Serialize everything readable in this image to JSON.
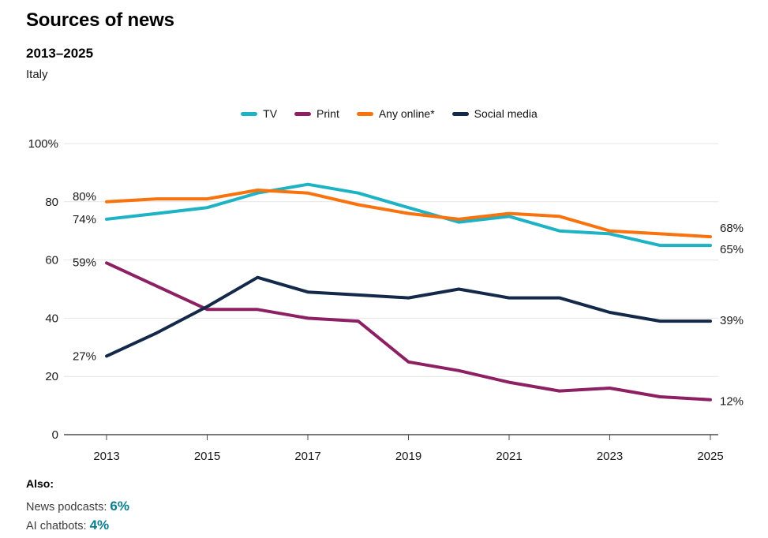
{
  "header": {
    "title": "Sources of news",
    "subtitle": "2013–2025",
    "region": "Italy"
  },
  "legend": [
    {
      "label": "TV",
      "color": "#1DB2C4"
    },
    {
      "label": "Print",
      "color": "#8D2063"
    },
    {
      "label": "Any online*",
      "color": "#F8720D"
    },
    {
      "label": "Social media",
      "color": "#14294A"
    }
  ],
  "chart_data": {
    "type": "line",
    "title": "Sources of news",
    "subtitle": "2013–2025",
    "region": "Italy",
    "x": [
      2013,
      2014,
      2015,
      2016,
      2017,
      2018,
      2019,
      2020,
      2021,
      2022,
      2023,
      2024,
      2025
    ],
    "xticks": [
      2013,
      2015,
      2017,
      2019,
      2021,
      2023,
      2025
    ],
    "ylim": [
      0,
      100
    ],
    "yticks": [
      {
        "value": 100,
        "label": "100%"
      },
      {
        "value": 80,
        "label": "80"
      },
      {
        "value": 60,
        "label": "60"
      },
      {
        "value": 40,
        "label": "40"
      },
      {
        "value": 20,
        "label": "20"
      },
      {
        "value": 0,
        "label": "0"
      }
    ],
    "grid": true,
    "legend_position": "top",
    "grid_color": "#e4e4e4",
    "axis_color": "#4d4d4d",
    "text_color": "#1a1a1a",
    "series": [
      {
        "name": "TV",
        "color": "#1DB2C4",
        "values": [
          74,
          76,
          78,
          83,
          86,
          83,
          78,
          73,
          75,
          70,
          69,
          65,
          65
        ],
        "start_label": "74%",
        "end_label": "65%"
      },
      {
        "name": "Print",
        "color": "#8D2063",
        "values": [
          59,
          51,
          43,
          43,
          40,
          39,
          25,
          22,
          18,
          15,
          16,
          13,
          12
        ],
        "start_label": "59%",
        "end_label": "12%"
      },
      {
        "name": "Any online*",
        "color": "#F8720D",
        "values": [
          80,
          81,
          81,
          84,
          83,
          79,
          76,
          74,
          76,
          75,
          70,
          69,
          68
        ],
        "start_label": "80%",
        "end_label": "68%"
      },
      {
        "name": "Social media",
        "color": "#14294A",
        "values": [
          27,
          35,
          44,
          54,
          49,
          48,
          47,
          50,
          47,
          47,
          42,
          39,
          39
        ],
        "start_label": "27%",
        "end_label": "39%"
      }
    ]
  },
  "footer": {
    "also": "Also:",
    "accent_color": "#0A7D8C",
    "items": [
      {
        "label": "News podcasts:",
        "value": "6%"
      },
      {
        "label": "AI chatbots:",
        "value": "4%"
      }
    ]
  }
}
